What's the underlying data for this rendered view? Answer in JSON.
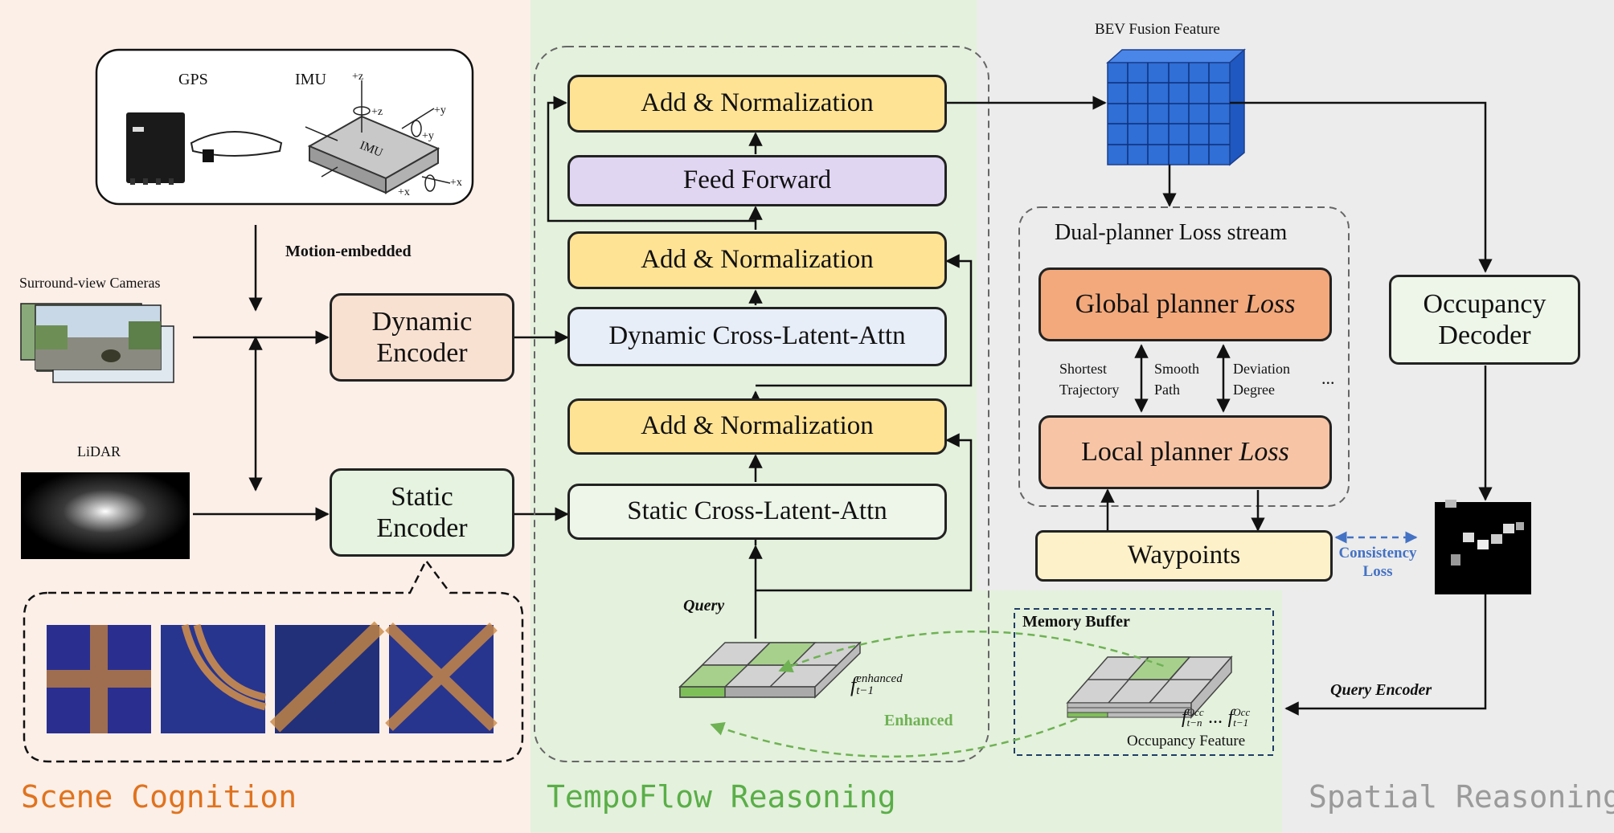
{
  "sections": {
    "scene": "Scene Cognition",
    "tempo": "TempoFlow Reasoning",
    "spatial": "Spatial Reasoning"
  },
  "sensors": {
    "gps": "GPS",
    "imu": "IMU",
    "imu_box": "IMU",
    "axis_z": "+z",
    "axis_z2": "+z",
    "axis_y": "+y",
    "axis_y2": "+y",
    "axis_x": "+x",
    "axis_x2": "+x",
    "cameras": "Surround-view Cameras",
    "lidar": "LiDAR",
    "motion": "Motion-embedded"
  },
  "encoders": {
    "dynamic": "Dynamic Encoder",
    "static": "Static Encoder"
  },
  "tempo": {
    "add_norm_top": "Add & Normalization",
    "feed_forward": "Feed Forward",
    "add_norm_mid": "Add & Normalization",
    "dynamic_attn": "Dynamic Cross-Latent-Attn",
    "add_norm_low": "Add & Normalization",
    "static_attn": "Static Cross-Latent-Attn",
    "query": "Query",
    "enhanced_feature": "f",
    "enhanced_sup": "enhanced",
    "enhanced_sub": "t−1",
    "enhanced_label": "Enhanced"
  },
  "spatial": {
    "bev": "BEV Fusion Feature",
    "dual_planner": "Dual-planner Loss stream",
    "global_planner": "Global planner",
    "local_planner": "Local planner",
    "loss_word": "Loss",
    "shortest": "Shortest Trajectory",
    "smooth": "Smooth Path",
    "deviation": "Deviation Degree",
    "ellipsis": "...",
    "waypoints": "Waypoints",
    "consistency": "Consistency Loss",
    "occupancy_decoder": "Occupancy Decoder",
    "query_encoder": "Query Encoder",
    "memory_buffer": "Memory Buffer",
    "occ_first": "f",
    "occ_first_sub": "t−n",
    "occ_first_sup": "Occ",
    "occ_dots": "...",
    "occ_last": "f",
    "occ_last_sub": "t−1",
    "occ_last_sup": "Occ",
    "occupancy_feature": "Occupancy Feature"
  },
  "colors": {
    "scene_bg": "#fcefe8",
    "tempo_bg": "#e4f1dd",
    "spatial_bg": "#ececec",
    "scene_label": "#e0731e",
    "tempo_label": "#5aae48",
    "spatial_label": "#9a9a9a",
    "bev_blue": "#2f6fd6",
    "consistency": "#4472c4",
    "enhanced_green": "#6fb254"
  }
}
